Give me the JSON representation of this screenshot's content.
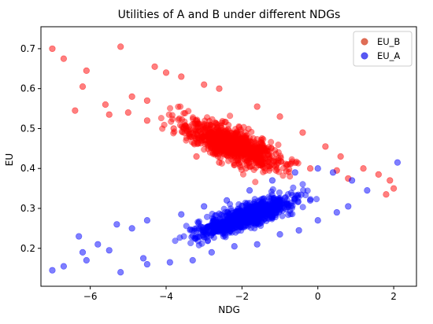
{
  "chart_data": {
    "type": "scatter",
    "title": "Utilities of A and B under different NDGs",
    "xlabel": "NDG",
    "ylabel": "EU",
    "xlim": [
      -7.3,
      2.6
    ],
    "ylim": [
      0.105,
      0.755
    ],
    "xticks": [
      -6,
      -4,
      -2,
      0,
      2
    ],
    "xtick_labels": [
      "−6",
      "−4",
      "−2",
      "0",
      "2"
    ],
    "yticks": [
      0.2,
      0.3,
      0.4,
      0.5,
      0.6,
      0.7
    ],
    "ytick_labels": [
      "0.2",
      "0.3",
      "0.4",
      "0.5",
      "0.6",
      "0.7"
    ],
    "grid": false,
    "legend_position": "top-right",
    "series": [
      {
        "name": "EU_B",
        "color": "#ff0000",
        "points": [
          [
            -7.0,
            0.7
          ],
          [
            -6.7,
            0.675
          ],
          [
            -6.1,
            0.645
          ],
          [
            -6.2,
            0.605
          ],
          [
            -6.4,
            0.545
          ],
          [
            -5.2,
            0.705
          ],
          [
            -5.6,
            0.56
          ],
          [
            -5.5,
            0.535
          ],
          [
            -4.3,
            0.655
          ],
          [
            -4.0,
            0.64
          ],
          [
            -3.6,
            0.63
          ],
          [
            -3.0,
            0.61
          ],
          [
            -2.6,
            0.6
          ],
          [
            -4.9,
            0.58
          ],
          [
            -4.5,
            0.57
          ],
          [
            -1.6,
            0.555
          ],
          [
            -1.0,
            0.53
          ],
          [
            -0.4,
            0.49
          ],
          [
            0.2,
            0.455
          ],
          [
            0.6,
            0.43
          ],
          [
            1.2,
            0.4
          ],
          [
            1.6,
            0.385
          ],
          [
            1.9,
            0.37
          ],
          [
            2.0,
            0.35
          ],
          [
            1.8,
            0.335
          ],
          [
            0.8,
            0.375
          ],
          [
            0.5,
            0.395
          ],
          [
            -0.2,
            0.4
          ],
          [
            -0.8,
            0.41
          ],
          [
            -1.5,
            0.42
          ],
          [
            -2.3,
            0.45
          ],
          [
            -3.0,
            0.48
          ],
          [
            -3.8,
            0.5
          ],
          [
            -4.5,
            0.52
          ],
          [
            -5.0,
            0.54
          ],
          [
            -3.2,
            0.43
          ],
          [
            -2.6,
            0.415
          ],
          [
            -1.9,
            0.4
          ],
          [
            -1.1,
            0.395
          ]
        ]
      },
      {
        "name": "EU_A",
        "color": "#0000ff",
        "points": [
          [
            -7.0,
            0.145
          ],
          [
            -6.7,
            0.155
          ],
          [
            -6.3,
            0.23
          ],
          [
            -6.2,
            0.19
          ],
          [
            -6.1,
            0.17
          ],
          [
            -5.2,
            0.14
          ],
          [
            -5.3,
            0.26
          ],
          [
            -4.9,
            0.25
          ],
          [
            -4.6,
            0.175
          ],
          [
            -4.5,
            0.16
          ],
          [
            -3.9,
            0.165
          ],
          [
            -3.3,
            0.17
          ],
          [
            -2.8,
            0.19
          ],
          [
            -4.5,
            0.27
          ],
          [
            -3.6,
            0.285
          ],
          [
            -3.0,
            0.305
          ],
          [
            -2.4,
            0.32
          ],
          [
            -1.8,
            0.345
          ],
          [
            -1.2,
            0.37
          ],
          [
            -0.6,
            0.39
          ],
          [
            0.0,
            0.4
          ],
          [
            0.4,
            0.39
          ],
          [
            0.9,
            0.37
          ],
          [
            1.3,
            0.345
          ],
          [
            2.1,
            0.415
          ],
          [
            0.5,
            0.29
          ],
          [
            0.0,
            0.27
          ],
          [
            -0.5,
            0.245
          ],
          [
            -1.0,
            0.235
          ],
          [
            -1.6,
            0.21
          ],
          [
            -2.2,
            0.205
          ],
          [
            -5.8,
            0.21
          ],
          [
            -5.5,
            0.195
          ],
          [
            0.8,
            0.305
          ],
          [
            -0.2,
            0.32
          ]
        ]
      }
    ]
  }
}
